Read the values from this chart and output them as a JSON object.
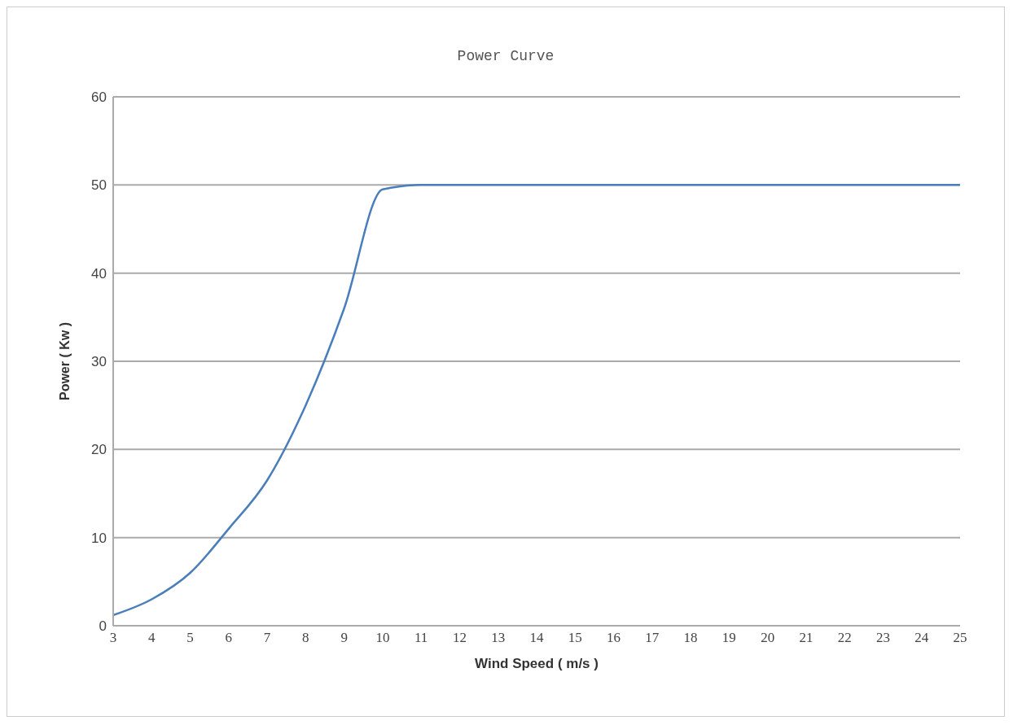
{
  "chart_data": {
    "type": "line",
    "title": "Power Curve",
    "xlabel": "Wind Speed ( m/s )",
    "ylabel": "Power ( Kw )",
    "categories": [
      "3",
      "4",
      "5",
      "6",
      "7",
      "8",
      "9",
      "10",
      "11",
      "12",
      "13",
      "14",
      "15",
      "16",
      "17",
      "18",
      "19",
      "20",
      "21",
      "22",
      "23",
      "24",
      "25"
    ],
    "series": [
      {
        "color": "#4a7ebb",
        "values": [
          1.2,
          3,
          6,
          11,
          16.5,
          25,
          36,
          49.5,
          50,
          50,
          50,
          50,
          50,
          50,
          50,
          50,
          50,
          50,
          50,
          50,
          50,
          50,
          50
        ]
      }
    ],
    "ylim": [
      0,
      60
    ],
    "yticks": [
      0,
      10,
      20,
      30,
      40,
      50,
      60
    ],
    "grid": "y",
    "legend": false,
    "marker": "none",
    "line_style": "solid"
  }
}
